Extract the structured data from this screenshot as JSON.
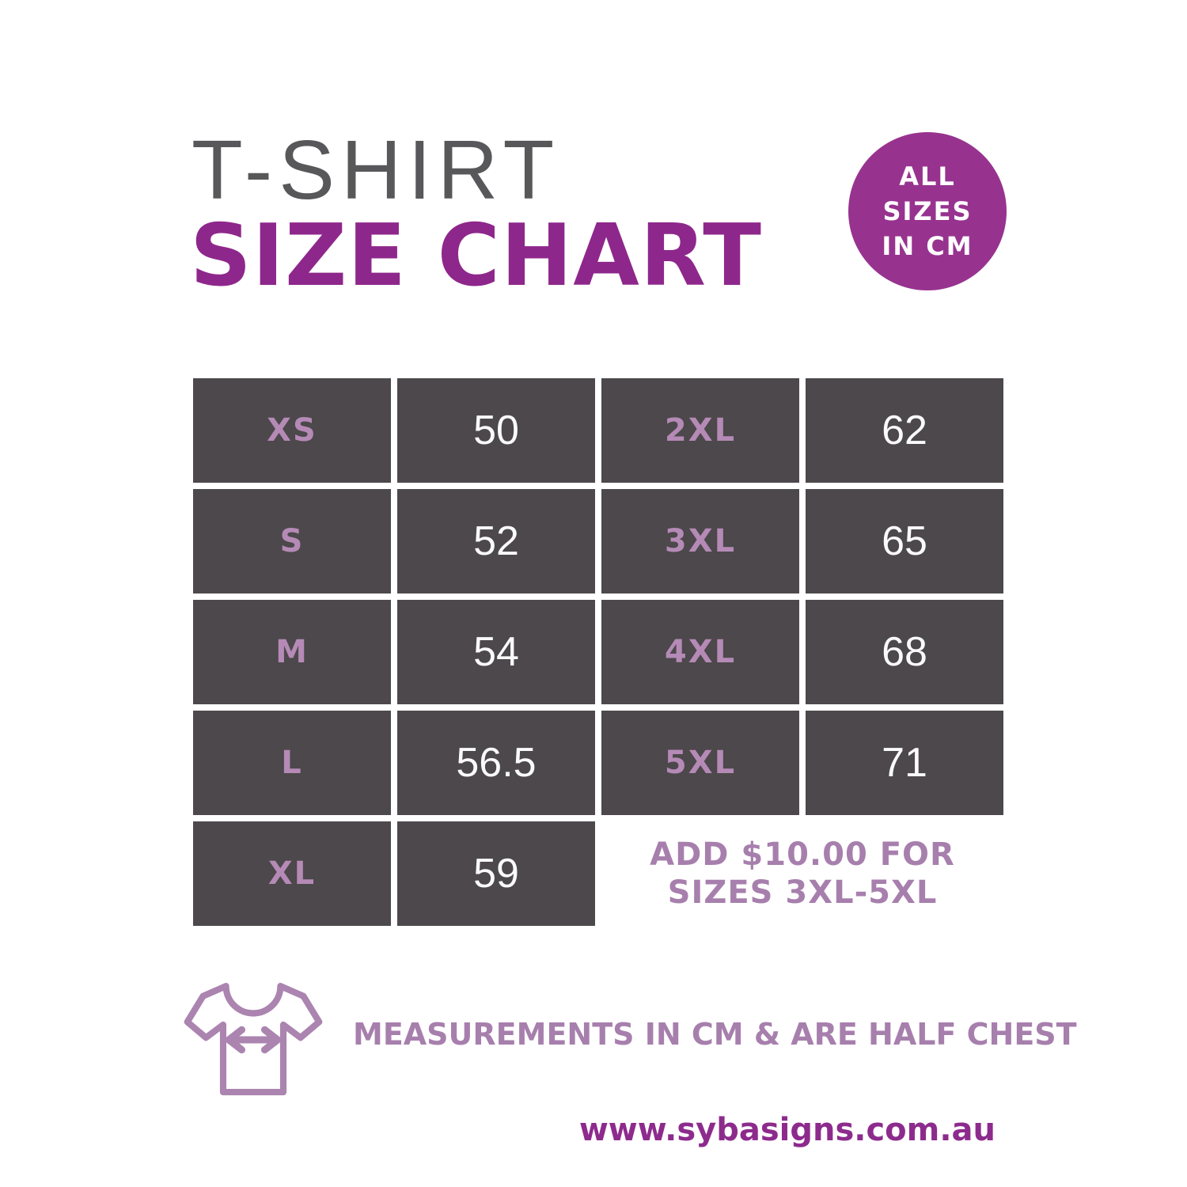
{
  "header": {
    "title_line1": "T-SHIRT",
    "title_line2": "SIZE CHART"
  },
  "badge": {
    "lines": [
      "ALL",
      "SIZES",
      "IN CM"
    ]
  },
  "size_table": {
    "left_columns": [
      {
        "size": "XS",
        "value": "50"
      },
      {
        "size": "S",
        "value": "52"
      },
      {
        "size": "M",
        "value": "54"
      },
      {
        "size": "L",
        "value": "56.5"
      },
      {
        "size": "XL",
        "value": "59"
      }
    ],
    "right_columns": [
      {
        "size": "2XL",
        "value": "62"
      },
      {
        "size": "3XL",
        "value": "65"
      },
      {
        "size": "4XL",
        "value": "68"
      },
      {
        "size": "5XL",
        "value": "71"
      }
    ]
  },
  "note": {
    "line1": "ADD $10.00 FOR",
    "line2": "SIZES 3XL-5XL"
  },
  "footnote": {
    "icon": "tshirt-width-icon",
    "text": "MEASUREMENTS IN CM & ARE HALF CHEST"
  },
  "footer": {
    "url": "www.sybasigns.com.au"
  },
  "colors": {
    "title-gray": "#58585a",
    "brand-purple": "#8e278b",
    "badge-purple": "#97338f",
    "cell-bg": "#4c484b",
    "label-purple": "#b58ab6",
    "value-white": "#fbfafb",
    "note-purple": "#a77fad",
    "url-purple": "#8d2b8d",
    "icon-purple": "#ab84b0"
  },
  "chart_data": {
    "type": "table",
    "title": "T-SHIRT SIZE CHART",
    "unit": "cm",
    "measurement": "half chest",
    "columns": [
      "size",
      "half_chest_cm"
    ],
    "rows": [
      {
        "size": "XS",
        "half_chest_cm": 50
      },
      {
        "size": "S",
        "half_chest_cm": 52
      },
      {
        "size": "M",
        "half_chest_cm": 54
      },
      {
        "size": "L",
        "half_chest_cm": 56.5
      },
      {
        "size": "XL",
        "half_chest_cm": 59
      },
      {
        "size": "2XL",
        "half_chest_cm": 62
      },
      {
        "size": "3XL",
        "half_chest_cm": 65
      },
      {
        "size": "4XL",
        "half_chest_cm": 68
      },
      {
        "size": "5XL",
        "half_chest_cm": 71
      }
    ],
    "annotations": [
      "ALL SIZES IN CM",
      "ADD $10.00 FOR SIZES 3XL-5XL",
      "MEASUREMENTS IN CM & ARE HALF CHEST"
    ]
  }
}
